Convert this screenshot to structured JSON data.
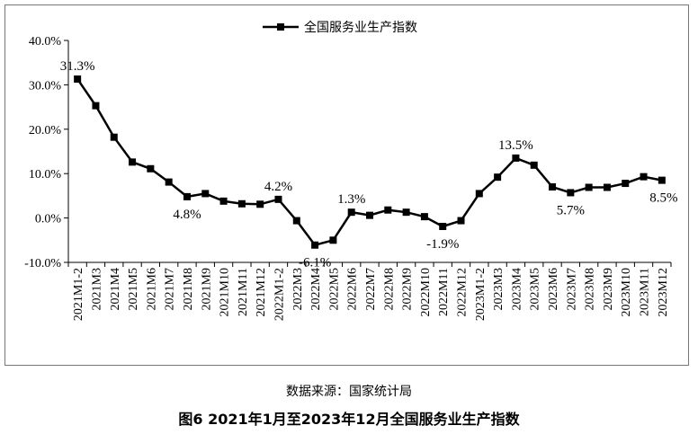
{
  "chart_data": {
    "type": "line",
    "legend": "top",
    "categories": [
      "2021M1-2",
      "2021M3",
      "2021M4",
      "2021M5",
      "2021M6",
      "2021M7",
      "2021M8",
      "2021M9",
      "2021M10",
      "2021M11",
      "2021M12",
      "2022M1-2",
      "2022M3",
      "2022M4",
      "2022M5",
      "2022M6",
      "2022M7",
      "2022M8",
      "2022M9",
      "2022M10",
      "2022M11",
      "2022M12",
      "2023M1-2",
      "2023M3",
      "2023M4",
      "2023M5",
      "2023M6",
      "2023M7",
      "2023M8",
      "2023M9",
      "2023M10",
      "2023M11",
      "2023M12"
    ],
    "series": [
      {
        "name": "全国服务业生产指数",
        "color": "#000000",
        "values": [
          31.3,
          25.3,
          18.2,
          12.6,
          11.1,
          8.1,
          4.8,
          5.5,
          3.8,
          3.2,
          3.1,
          4.2,
          -0.6,
          -6.1,
          -5.0,
          1.3,
          0.6,
          1.8,
          1.3,
          0.3,
          -1.9,
          -0.6,
          5.5,
          9.2,
          13.5,
          11.9,
          7.0,
          5.7,
          6.9,
          6.9,
          7.8,
          9.3,
          8.5
        ],
        "value_labels": [
          "31.3%",
          null,
          null,
          null,
          null,
          null,
          "4.8%",
          null,
          null,
          null,
          null,
          "4.2%",
          null,
          "-6.1%",
          null,
          "1.3%",
          null,
          null,
          null,
          null,
          "-1.9%",
          null,
          null,
          null,
          "13.5%",
          null,
          null,
          "5.7%",
          null,
          null,
          null,
          null,
          "8.5%"
        ]
      }
    ],
    "ylim": [
      -10,
      40
    ],
    "yticks": [
      {
        "value": -10,
        "label": "-10.0%"
      },
      {
        "value": 0,
        "label": "0.0%"
      },
      {
        "value": 10,
        "label": "10.0%"
      },
      {
        "value": 20,
        "label": "20.0%"
      },
      {
        "value": 30,
        "label": "30.0%"
      },
      {
        "value": 40,
        "label": "40.0%"
      }
    ],
    "grid": false
  },
  "source": "数据来源：国家统计局",
  "caption": "图6 2021年1月至2023年12月全国服务业生产指数"
}
